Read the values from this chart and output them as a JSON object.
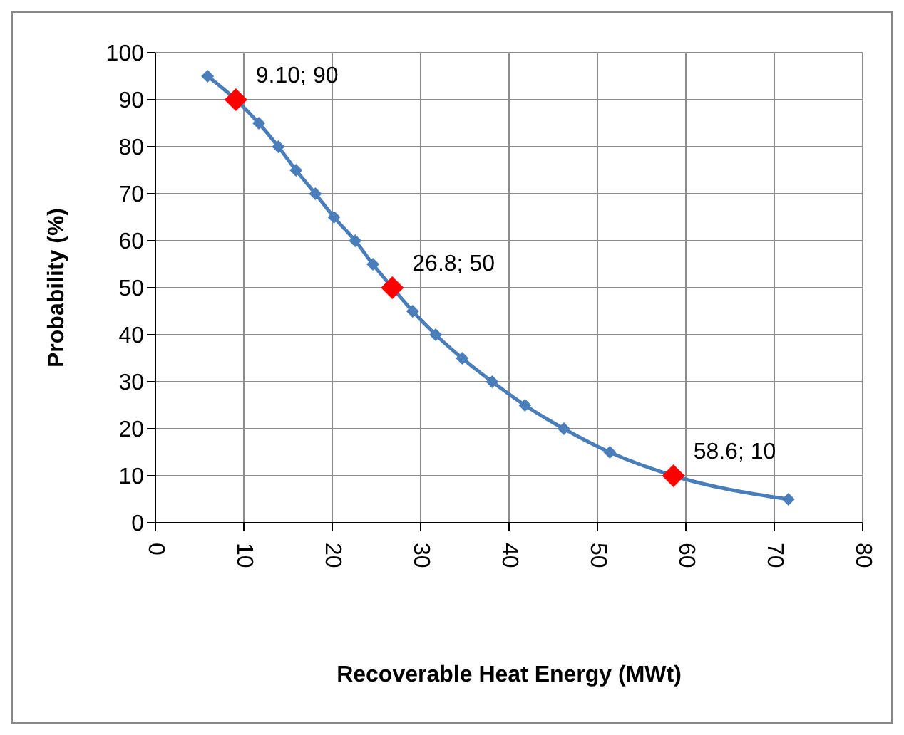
{
  "chart_data": {
    "type": "line",
    "xlabel": "Recoverable Heat Energy (MWt)",
    "ylabel": "Probability (%)",
    "series": [
      {
        "color": "#4a7ebb",
        "x": [
          5.9,
          9.1,
          11.7,
          13.9,
          15.9,
          18.1,
          20.2,
          22.6,
          24.6,
          26.8,
          29.1,
          31.7,
          34.7,
          38.1,
          41.8,
          46.2,
          51.4,
          58.6,
          71.6
        ],
        "values": [
          95,
          90,
          85,
          80,
          75,
          70,
          65,
          60,
          55,
          50,
          45,
          40,
          35,
          30,
          25,
          20,
          15,
          10,
          5
        ]
      },
      {
        "type": "scatter",
        "color": "#ff0000",
        "x": [
          9.1,
          26.8,
          58.6
        ],
        "values": [
          90,
          50,
          10
        ]
      }
    ],
    "annotations": [
      {
        "text": "9.10; 90",
        "x": 9.1,
        "y": 90
      },
      {
        "text": "26.8; 50",
        "x": 26.8,
        "y": 50
      },
      {
        "text": "58.6; 10",
        "x": 58.6,
        "y": 10
      }
    ],
    "xlim": [
      0,
      80
    ],
    "xticks": [
      0,
      10,
      20,
      30,
      40,
      50,
      60,
      70,
      80
    ],
    "ylim": [
      0,
      100
    ],
    "yticks": [
      0,
      10,
      20,
      30,
      40,
      50,
      60,
      70,
      80,
      90,
      100
    ],
    "grid": true,
    "legend": false,
    "marker": "diamond",
    "line_style": "solid"
  }
}
